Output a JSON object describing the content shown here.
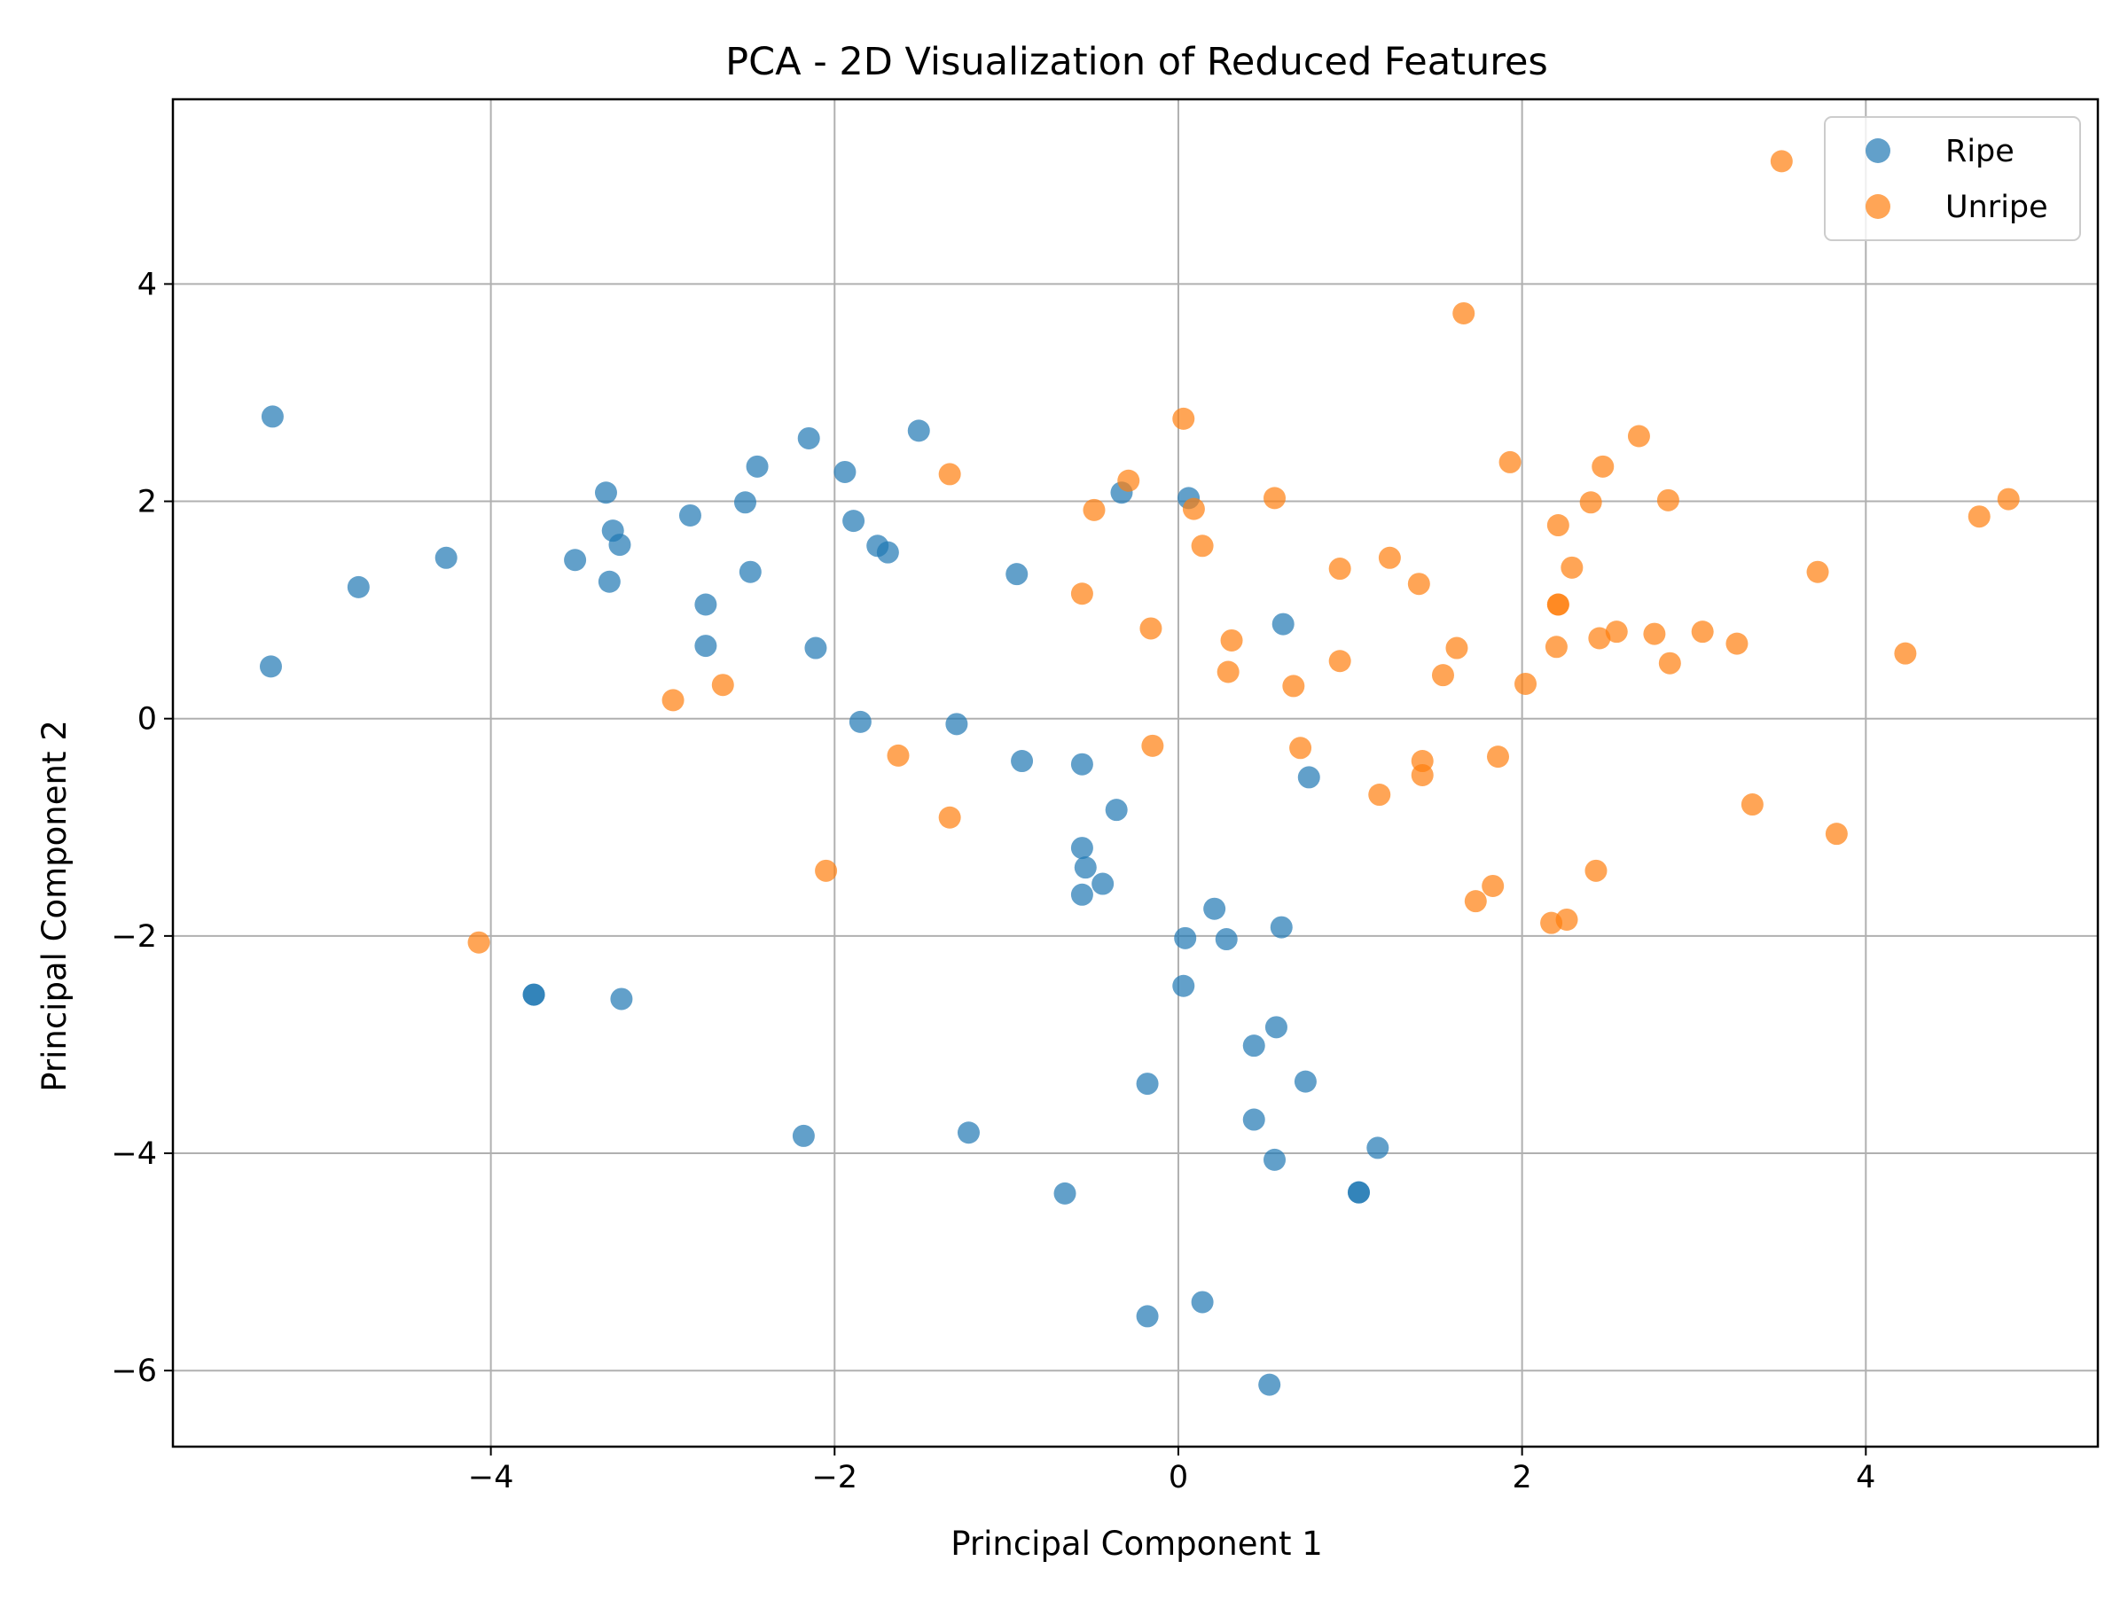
{
  "chart_data": {
    "type": "scatter",
    "title": "PCA - 2D Visualization of Reduced Features",
    "xlabel": "Principal Component 1",
    "ylabel": "Principal Component 2",
    "xlim": [
      -5.85,
      5.35
    ],
    "ylim": [
      -6.7,
      5.7
    ],
    "xticks": [
      -4,
      -2,
      0,
      2,
      4
    ],
    "yticks": [
      -6,
      -4,
      -2,
      0,
      2,
      4
    ],
    "xtick_labels": [
      "−4",
      "−2",
      "0",
      "2",
      "4"
    ],
    "ytick_labels": [
      "−6",
      "−4",
      "−2",
      "0",
      "2",
      "4"
    ],
    "grid": true,
    "legend_position": "top-right",
    "series": [
      {
        "name": "Ripe",
        "color": "#1f77b4",
        "points": [
          [
            -5.27,
            2.78
          ],
          [
            -5.28,
            0.48
          ],
          [
            -4.77,
            1.21
          ],
          [
            -4.26,
            1.48
          ],
          [
            -3.51,
            1.46
          ],
          [
            -3.33,
            2.08
          ],
          [
            -3.29,
            1.73
          ],
          [
            -3.25,
            1.6
          ],
          [
            -3.31,
            1.26
          ],
          [
            -2.84,
            1.87
          ],
          [
            -2.52,
            1.99
          ],
          [
            -2.75,
            1.05
          ],
          [
            -2.75,
            0.67
          ],
          [
            -2.49,
            1.35
          ],
          [
            -2.45,
            2.32
          ],
          [
            -2.15,
            2.58
          ],
          [
            -2.11,
            0.65
          ],
          [
            -1.94,
            2.27
          ],
          [
            -1.89,
            1.82
          ],
          [
            -1.75,
            1.59
          ],
          [
            -1.69,
            1.53
          ],
          [
            -1.51,
            2.65
          ],
          [
            -0.94,
            1.33
          ],
          [
            -0.33,
            2.08
          ],
          [
            0.06,
            2.03
          ],
          [
            0.61,
            0.87
          ],
          [
            -1.85,
            -0.03
          ],
          [
            -1.29,
            -0.05
          ],
          [
            -0.91,
            -0.39
          ],
          [
            -0.56,
            -0.42
          ],
          [
            0.76,
            -0.54
          ],
          [
            -0.36,
            -0.84
          ],
          [
            -0.56,
            -1.19
          ],
          [
            -0.54,
            -1.37
          ],
          [
            -0.44,
            -1.52
          ],
          [
            -0.56,
            -1.62
          ],
          [
            0.21,
            -1.75
          ],
          [
            0.04,
            -2.02
          ],
          [
            0.28,
            -2.03
          ],
          [
            0.6,
            -1.92
          ],
          [
            0.03,
            -2.46
          ],
          [
            0.57,
            -2.84
          ],
          [
            0.44,
            -3.01
          ],
          [
            0.74,
            -3.34
          ],
          [
            -0.18,
            -3.36
          ],
          [
            0.44,
            -3.69
          ],
          [
            1.16,
            -3.95
          ],
          [
            0.56,
            -4.06
          ],
          [
            -1.22,
            -3.81
          ],
          [
            -2.18,
            -3.84
          ],
          [
            -0.66,
            -4.37
          ],
          [
            1.05,
            -4.36
          ],
          [
            1.05,
            -4.36
          ],
          [
            0.14,
            -5.37
          ],
          [
            -0.18,
            -5.5
          ],
          [
            0.53,
            -6.13
          ],
          [
            -3.75,
            -2.54
          ],
          [
            -3.75,
            -2.54
          ],
          [
            -3.24,
            -2.58
          ]
        ]
      },
      {
        "name": "Unripe",
        "color": "#ff7f0e",
        "points": [
          [
            3.51,
            5.13
          ],
          [
            1.66,
            3.73
          ],
          [
            0.03,
            2.76
          ],
          [
            2.68,
            2.6
          ],
          [
            1.93,
            2.36
          ],
          [
            2.47,
            2.32
          ],
          [
            -1.33,
            2.25
          ],
          [
            -0.29,
            2.19
          ],
          [
            0.56,
            2.03
          ],
          [
            2.85,
            2.01
          ],
          [
            2.4,
            1.99
          ],
          [
            0.09,
            1.93
          ],
          [
            -0.49,
            1.92
          ],
          [
            4.83,
            2.02
          ],
          [
            4.66,
            1.86
          ],
          [
            2.21,
            1.78
          ],
          [
            0.14,
            1.59
          ],
          [
            1.23,
            1.48
          ],
          [
            0.94,
            1.38
          ],
          [
            2.29,
            1.39
          ],
          [
            3.72,
            1.35
          ],
          [
            1.4,
            1.24
          ],
          [
            -0.56,
            1.15
          ],
          [
            2.21,
            1.05
          ],
          [
            2.21,
            1.05
          ],
          [
            -0.16,
            0.83
          ],
          [
            2.55,
            0.8
          ],
          [
            3.05,
            0.8
          ],
          [
            2.77,
            0.78
          ],
          [
            2.45,
            0.74
          ],
          [
            0.31,
            0.72
          ],
          [
            3.25,
            0.69
          ],
          [
            1.62,
            0.65
          ],
          [
            2.2,
            0.66
          ],
          [
            4.23,
            0.6
          ],
          [
            0.94,
            0.53
          ],
          [
            2.86,
            0.51
          ],
          [
            0.29,
            0.43
          ],
          [
            1.54,
            0.4
          ],
          [
            2.02,
            0.32
          ],
          [
            0.67,
            0.3
          ],
          [
            -2.65,
            0.31
          ],
          [
            -2.94,
            0.17
          ],
          [
            -0.15,
            -0.25
          ],
          [
            0.71,
            -0.27
          ],
          [
            -1.63,
            -0.34
          ],
          [
            1.86,
            -0.35
          ],
          [
            1.42,
            -0.39
          ],
          [
            1.42,
            -0.52
          ],
          [
            1.17,
            -0.7
          ],
          [
            3.34,
            -0.79
          ],
          [
            -1.33,
            -0.91
          ],
          [
            3.83,
            -1.06
          ],
          [
            -2.05,
            -1.4
          ],
          [
            2.43,
            -1.4
          ],
          [
            1.83,
            -1.54
          ],
          [
            1.73,
            -1.68
          ],
          [
            2.26,
            -1.85
          ],
          [
            2.17,
            -1.88
          ],
          [
            -4.07,
            -2.06
          ]
        ]
      }
    ]
  }
}
